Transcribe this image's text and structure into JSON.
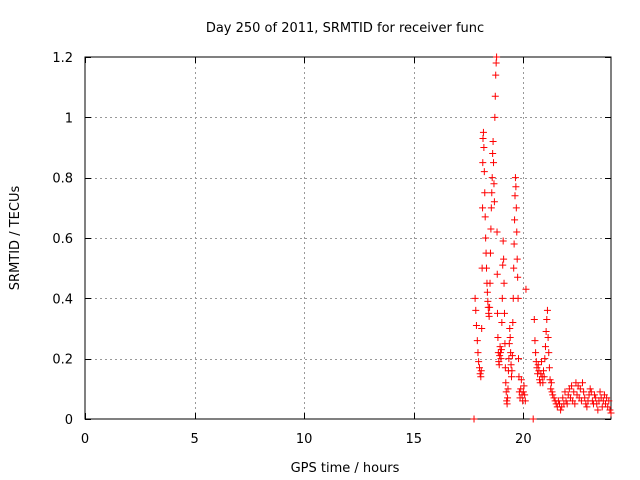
{
  "chart_data": {
    "type": "scatter",
    "title": "Day 250 of 2011, SRMTID for receiver func",
    "xlabel": "GPS time / hours",
    "ylabel": "SRMTID / TECUs",
    "xlim": [
      0,
      24
    ],
    "ylim": [
      0,
      1.2
    ],
    "xticks": [
      0,
      5,
      10,
      15,
      20
    ],
    "xtick_labels": [
      "0",
      "5",
      "10",
      "15",
      "20"
    ],
    "yticks": [
      0,
      0.2,
      0.4,
      0.6,
      0.8,
      1.0,
      1.2
    ],
    "ytick_labels": [
      "0",
      "0.2",
      "0.4",
      "0.6",
      "0.8",
      "1",
      "1.2"
    ],
    "grid": true,
    "marker": "+",
    "series": [
      {
        "name": "SRMTID",
        "color": "#ff0000",
        "points": [
          [
            17.75,
            0.0
          ],
          [
            20.45,
            0.0
          ],
          [
            17.8,
            0.4
          ],
          [
            17.83,
            0.36
          ],
          [
            17.86,
            0.31
          ],
          [
            17.9,
            0.26
          ],
          [
            17.93,
            0.22
          ],
          [
            17.96,
            0.19
          ],
          [
            18.0,
            0.17
          ],
          [
            18.03,
            0.15
          ],
          [
            18.06,
            0.14
          ],
          [
            18.08,
            0.16
          ],
          [
            18.1,
            0.3
          ],
          [
            18.12,
            0.5
          ],
          [
            18.14,
            0.7
          ],
          [
            18.15,
            0.85
          ],
          [
            18.16,
            0.93
          ],
          [
            18.18,
            0.95
          ],
          [
            18.2,
            0.9
          ],
          [
            18.22,
            0.82
          ],
          [
            18.24,
            0.75
          ],
          [
            18.26,
            0.67
          ],
          [
            18.28,
            0.6
          ],
          [
            18.3,
            0.55
          ],
          [
            18.32,
            0.5
          ],
          [
            18.34,
            0.45
          ],
          [
            18.36,
            0.42
          ],
          [
            18.38,
            0.39
          ],
          [
            18.4,
            0.37
          ],
          [
            18.42,
            0.35
          ],
          [
            18.44,
            0.34
          ],
          [
            18.46,
            0.37
          ],
          [
            18.48,
            0.45
          ],
          [
            18.5,
            0.55
          ],
          [
            18.52,
            0.63
          ],
          [
            18.54,
            0.7
          ],
          [
            18.56,
            0.75
          ],
          [
            18.58,
            0.8
          ],
          [
            18.6,
            0.88
          ],
          [
            18.62,
            0.92
          ],
          [
            18.64,
            0.85
          ],
          [
            18.66,
            0.78
          ],
          [
            18.68,
            0.72
          ],
          [
            18.7,
            1.0
          ],
          [
            18.72,
            1.07
          ],
          [
            18.74,
            1.14
          ],
          [
            18.76,
            1.18
          ],
          [
            18.78,
            1.2
          ],
          [
            18.8,
            0.62
          ],
          [
            18.81,
            0.48
          ],
          [
            18.82,
            0.35
          ],
          [
            18.84,
            0.27
          ],
          [
            18.86,
            0.22
          ],
          [
            18.88,
            0.19
          ],
          [
            18.9,
            0.18
          ],
          [
            18.92,
            0.21
          ],
          [
            18.94,
            0.24
          ],
          [
            18.96,
            0.22
          ],
          [
            18.98,
            0.2
          ],
          [
            19.0,
            0.23
          ],
          [
            19.02,
            0.32
          ],
          [
            19.04,
            0.4
          ],
          [
            19.06,
            0.51
          ],
          [
            19.08,
            0.59
          ],
          [
            19.1,
            0.53
          ],
          [
            19.12,
            0.45
          ],
          [
            19.14,
            0.35
          ],
          [
            19.16,
            0.25
          ],
          [
            19.18,
            0.17
          ],
          [
            19.2,
            0.12
          ],
          [
            19.22,
            0.09
          ],
          [
            19.24,
            0.06
          ],
          [
            19.26,
            0.05
          ],
          [
            19.28,
            0.07
          ],
          [
            19.3,
            0.1
          ],
          [
            19.32,
            0.16
          ],
          [
            19.34,
            0.2
          ],
          [
            19.36,
            0.25
          ],
          [
            19.38,
            0.3
          ],
          [
            19.4,
            0.27
          ],
          [
            19.42,
            0.22
          ],
          [
            19.44,
            0.18
          ],
          [
            19.46,
            0.14
          ],
          [
            19.48,
            0.16
          ],
          [
            19.5,
            0.21
          ],
          [
            19.52,
            0.32
          ],
          [
            19.54,
            0.4
          ],
          [
            19.56,
            0.5
          ],
          [
            19.58,
            0.58
          ],
          [
            19.6,
            0.66
          ],
          [
            19.62,
            0.74
          ],
          [
            19.64,
            0.8
          ],
          [
            19.66,
            0.77
          ],
          [
            19.68,
            0.7
          ],
          [
            19.7,
            0.62
          ],
          [
            19.72,
            0.53
          ],
          [
            19.74,
            0.47
          ],
          [
            19.76,
            0.4
          ],
          [
            19.78,
            0.2
          ],
          [
            19.8,
            0.14
          ],
          [
            19.82,
            0.09
          ],
          [
            19.85,
            0.07
          ],
          [
            19.88,
            0.1
          ],
          [
            19.91,
            0.13
          ],
          [
            19.94,
            0.08
          ],
          [
            19.97,
            0.06
          ],
          [
            20.0,
            0.09
          ],
          [
            20.03,
            0.11
          ],
          [
            20.06,
            0.08
          ],
          [
            20.09,
            0.06
          ],
          [
            20.12,
            0.43
          ],
          [
            20.5,
            0.33
          ],
          [
            20.53,
            0.26
          ],
          [
            20.56,
            0.22
          ],
          [
            20.59,
            0.19
          ],
          [
            20.62,
            0.17
          ],
          [
            20.65,
            0.15
          ],
          [
            20.68,
            0.18
          ],
          [
            20.71,
            0.16
          ],
          [
            20.74,
            0.13
          ],
          [
            20.77,
            0.12
          ],
          [
            20.8,
            0.15
          ],
          [
            20.83,
            0.19
          ],
          [
            20.86,
            0.14
          ],
          [
            20.89,
            0.12
          ],
          [
            20.92,
            0.16
          ],
          [
            20.95,
            0.14
          ],
          [
            20.98,
            0.2
          ],
          [
            21.01,
            0.24
          ],
          [
            21.04,
            0.29
          ],
          [
            21.07,
            0.33
          ],
          [
            21.1,
            0.36
          ],
          [
            21.13,
            0.27
          ],
          [
            21.16,
            0.22
          ],
          [
            21.19,
            0.17
          ],
          [
            21.22,
            0.13
          ],
          [
            21.25,
            0.1
          ],
          [
            21.28,
            0.12
          ],
          [
            21.31,
            0.09
          ],
          [
            21.34,
            0.08
          ],
          [
            21.4,
            0.07
          ],
          [
            21.45,
            0.06
          ],
          [
            21.5,
            0.05
          ],
          [
            21.55,
            0.04
          ],
          [
            21.6,
            0.06
          ],
          [
            21.65,
            0.05
          ],
          [
            21.7,
            0.03
          ],
          [
            21.75,
            0.04
          ],
          [
            21.8,
            0.07
          ],
          [
            21.85,
            0.05
          ],
          [
            21.9,
            0.09
          ],
          [
            21.95,
            0.06
          ],
          [
            22.0,
            0.05
          ],
          [
            22.05,
            0.08
          ],
          [
            22.1,
            0.1
          ],
          [
            22.15,
            0.07
          ],
          [
            22.2,
            0.11
          ],
          [
            22.25,
            0.06
          ],
          [
            22.3,
            0.09
          ],
          [
            22.35,
            0.05
          ],
          [
            22.4,
            0.12
          ],
          [
            22.45,
            0.08
          ],
          [
            22.5,
            0.11
          ],
          [
            22.55,
            0.07
          ],
          [
            22.6,
            0.1
          ],
          [
            22.65,
            0.06
          ],
          [
            22.7,
            0.12
          ],
          [
            22.75,
            0.09
          ],
          [
            22.8,
            0.07
          ],
          [
            22.85,
            0.05
          ],
          [
            22.9,
            0.04
          ],
          [
            22.95,
            0.06
          ],
          [
            23.0,
            0.08
          ],
          [
            23.05,
            0.1
          ],
          [
            23.1,
            0.09
          ],
          [
            23.15,
            0.06
          ],
          [
            23.2,
            0.05
          ],
          [
            23.25,
            0.08
          ],
          [
            23.3,
            0.07
          ],
          [
            23.35,
            0.05
          ],
          [
            23.4,
            0.03
          ],
          [
            23.45,
            0.06
          ],
          [
            23.5,
            0.09
          ],
          [
            23.55,
            0.07
          ],
          [
            23.6,
            0.04
          ],
          [
            23.65,
            0.06
          ],
          [
            23.7,
            0.08
          ],
          [
            23.75,
            0.05
          ],
          [
            23.8,
            0.07
          ],
          [
            23.85,
            0.04
          ],
          [
            23.9,
            0.06
          ],
          [
            23.95,
            0.03
          ],
          [
            24.0,
            0.02
          ]
        ]
      }
    ]
  }
}
